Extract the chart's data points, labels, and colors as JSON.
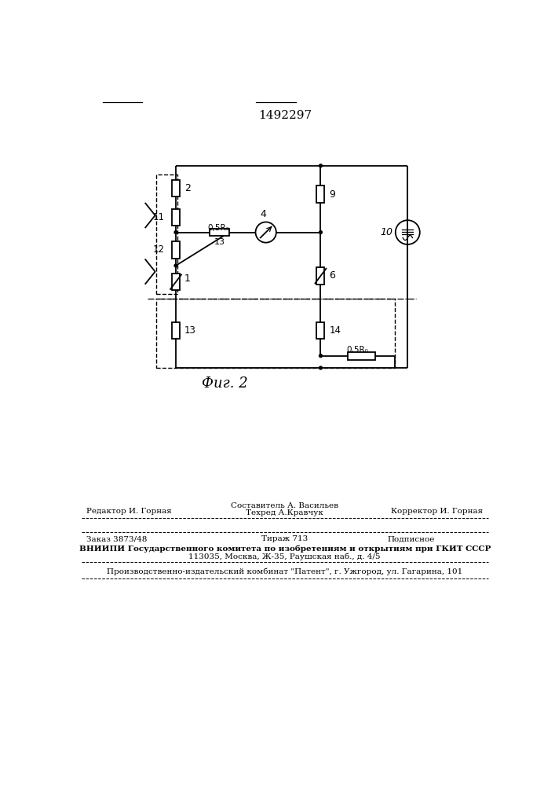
{
  "title": "1492297",
  "bg_color": "#ffffff",
  "line_color": "#000000",
  "fig_width": 7.07,
  "fig_height": 10.0,
  "fig_dpi": 100,
  "footer": {
    "line1_top": "Составитель А. Васильев",
    "line1_left": "Редактор И. Горная",
    "line1_center": "Техред А.Кравчук",
    "line1_right": "Корректор И. Горная",
    "line2_left": "Заказ 3873/48",
    "line2_center": "Тираж 713",
    "line2_right": "Подписное",
    "line3": "ВНИИПИ Государственного комитета по изобретениям и открытиям при ГКИТ СССР",
    "line4": "113035, Москва, Ж-35, Раушская наб., д. 4/5",
    "line5": "Производственно-издательский комбинат \"Патент\", г. Ужгород, ул. Гагарина, 101"
  }
}
